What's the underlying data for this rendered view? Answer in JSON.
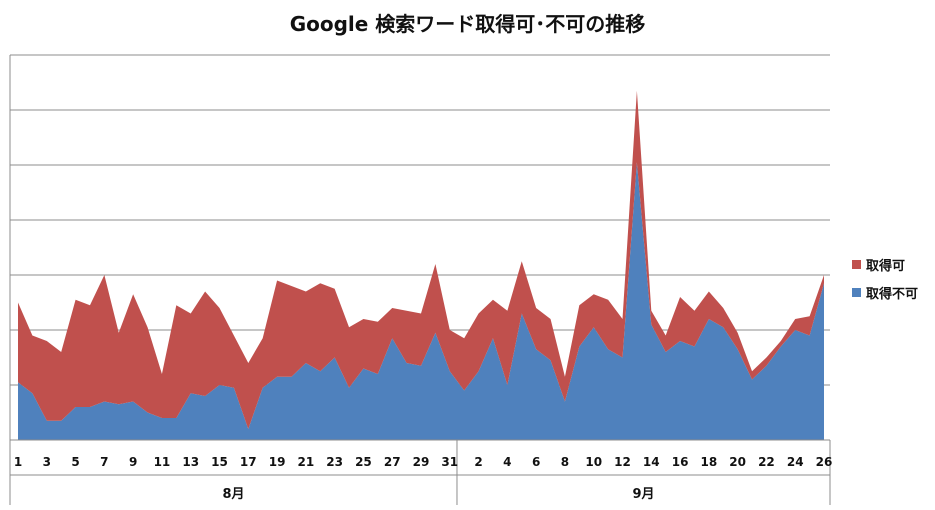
{
  "chart_data": {
    "type": "area",
    "stacked": true,
    "title": "Google 検索ワード取得可･不可の推移",
    "x": [
      "1",
      "2",
      "3",
      "4",
      "5",
      "6",
      "7",
      "8",
      "9",
      "10",
      "11",
      "12",
      "13",
      "14",
      "15",
      "16",
      "17",
      "18",
      "19",
      "20",
      "21",
      "22",
      "23",
      "24",
      "25",
      "26",
      "27",
      "28",
      "29",
      "30",
      "31",
      "1",
      "2",
      "3",
      "4",
      "5",
      "6",
      "7",
      "8",
      "9",
      "10",
      "11",
      "12",
      "13",
      "14",
      "15",
      "16",
      "17",
      "18",
      "19",
      "20",
      "21",
      "22",
      "23",
      "24",
      "25",
      "26"
    ],
    "tick_labels": [
      "1",
      "3",
      "5",
      "7",
      "9",
      "11",
      "13",
      "15",
      "17",
      "19",
      "21",
      "23",
      "25",
      "27",
      "29",
      "31",
      "2",
      "4",
      "6",
      "8",
      "10",
      "12",
      "14",
      "16",
      "18",
      "20",
      "22",
      "24",
      "26"
    ],
    "groups": [
      {
        "label": "8月",
        "count": 31
      },
      {
        "label": "9月",
        "count": 26
      }
    ],
    "series": [
      {
        "name": "取得不可",
        "color": "#4F81BD",
        "values": [
          1.05,
          0.85,
          0.35,
          0.35,
          0.6,
          0.6,
          0.7,
          0.65,
          0.7,
          0.5,
          0.4,
          0.4,
          0.85,
          0.8,
          1.0,
          0.95,
          0.2,
          0.95,
          1.15,
          1.15,
          1.4,
          1.25,
          1.5,
          0.95,
          1.3,
          1.2,
          1.85,
          1.4,
          1.35,
          1.95,
          1.25,
          0.9,
          1.25,
          1.85,
          1.0,
          2.3,
          1.65,
          1.45,
          0.7,
          1.7,
          2.05,
          1.65,
          1.5,
          5.05,
          2.1,
          1.6,
          1.8,
          1.7,
          2.2,
          2.05,
          1.65,
          1.1,
          1.35,
          1.7,
          2.0,
          1.9,
          2.85
        ]
      },
      {
        "name": "取得可",
        "color": "#C0504D",
        "values": [
          1.45,
          1.05,
          1.45,
          1.25,
          1.95,
          1.85,
          2.3,
          1.3,
          1.95,
          1.55,
          0.8,
          2.05,
          1.45,
          1.9,
          1.4,
          0.95,
          1.2,
          0.9,
          1.75,
          1.65,
          1.3,
          1.6,
          1.25,
          1.1,
          0.9,
          0.95,
          0.55,
          0.95,
          0.95,
          1.25,
          0.75,
          0.95,
          1.05,
          0.7,
          1.35,
          0.95,
          0.75,
          0.75,
          0.45,
          0.75,
          0.6,
          0.9,
          0.7,
          1.3,
          0.25,
          0.3,
          0.8,
          0.65,
          0.5,
          0.35,
          0.3,
          0.15,
          0.15,
          0.1,
          0.2,
          0.35,
          0.15
        ]
      }
    ],
    "ylim": [
      0,
      7
    ],
    "grid": true,
    "legend": "right"
  },
  "legend_items": [
    "取得可",
    "取得不可"
  ]
}
